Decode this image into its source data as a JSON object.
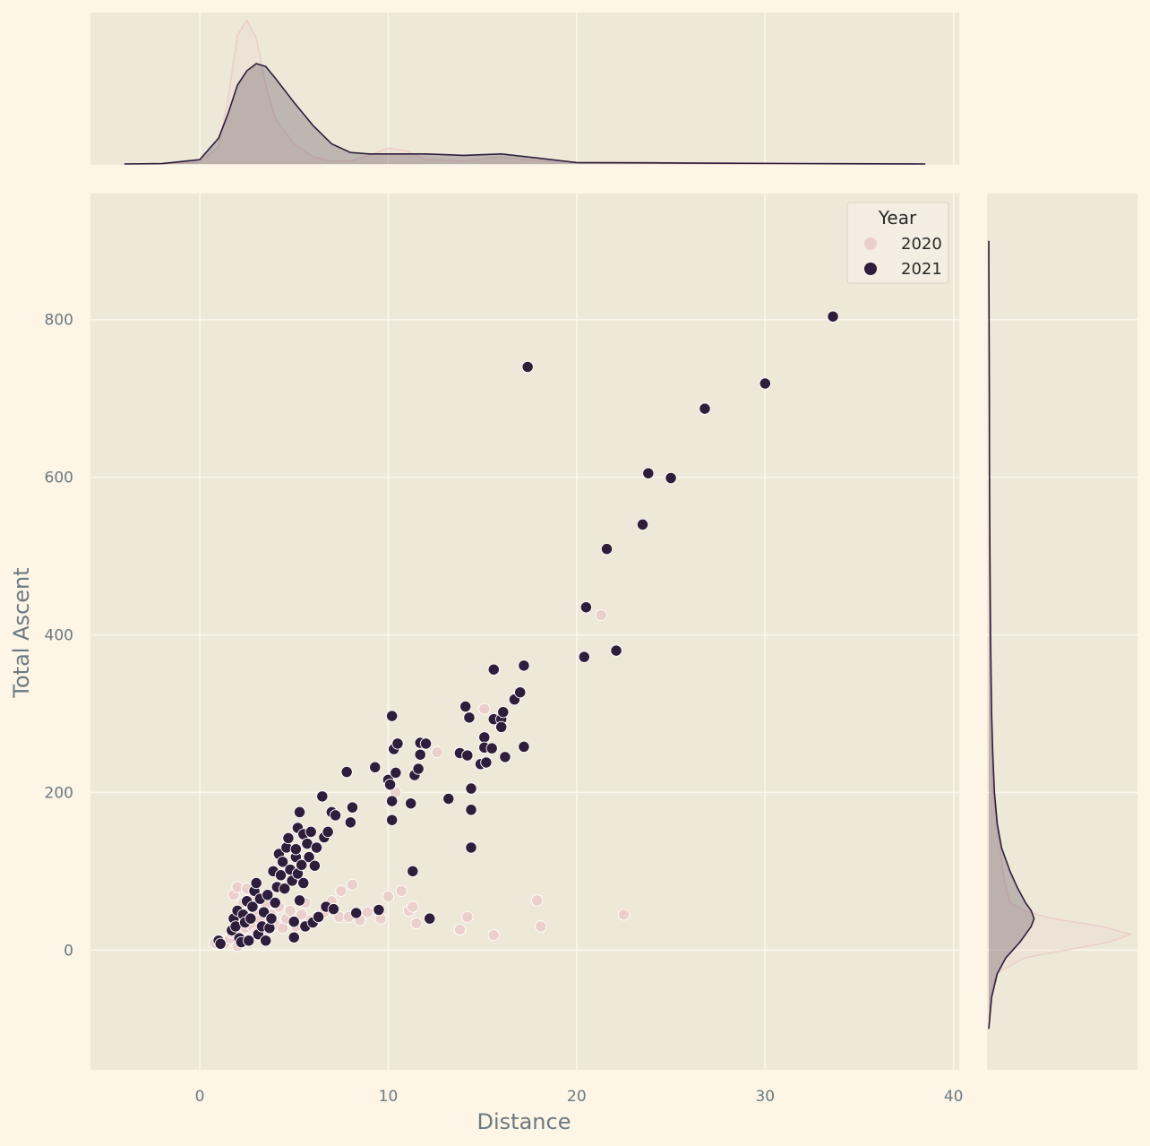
{
  "chart_data": {
    "type": "scatter",
    "kind": "jointplot with marginal KDE",
    "xlabel": "Distance",
    "ylabel": "Total Ascent",
    "xlim": [
      -5.8,
      40.3
    ],
    "ylim": [
      -152,
      960
    ],
    "xticks": [
      0,
      10,
      20,
      30,
      40
    ],
    "yticks": [
      0,
      200,
      400,
      600,
      800
    ],
    "grid": true,
    "legend": {
      "title": "Year",
      "position": "top-right"
    },
    "colors": {
      "plot_bg": "#ede8d8",
      "page_bg": "#fdf5e6",
      "grid": "#fbf7ee",
      "tick_text": "#6c7a80"
    },
    "series": [
      {
        "name": "2020",
        "color": "#ebcfcb",
        "points": [
          [
            0.8,
            9
          ],
          [
            1.1,
            12
          ],
          [
            1.3,
            8
          ],
          [
            1.6,
            15
          ],
          [
            1.7,
            22
          ],
          [
            1.8,
            70
          ],
          [
            1.9,
            25
          ],
          [
            2.0,
            80
          ],
          [
            2.0,
            5
          ],
          [
            2.1,
            18
          ],
          [
            2.2,
            35
          ],
          [
            2.3,
            60
          ],
          [
            2.4,
            28
          ],
          [
            2.5,
            44
          ],
          [
            2.5,
            78
          ],
          [
            2.6,
            12
          ],
          [
            2.7,
            55
          ],
          [
            2.8,
            30
          ],
          [
            2.9,
            67
          ],
          [
            3.0,
            22
          ],
          [
            3.1,
            48
          ],
          [
            3.2,
            38
          ],
          [
            3.3,
            18
          ],
          [
            3.5,
            58
          ],
          [
            3.6,
            26
          ],
          [
            3.8,
            45
          ],
          [
            4.0,
            32
          ],
          [
            4.2,
            55
          ],
          [
            4.4,
            28
          ],
          [
            4.6,
            40
          ],
          [
            4.8,
            50
          ],
          [
            5.1,
            30
          ],
          [
            5.4,
            45
          ],
          [
            5.6,
            60
          ],
          [
            5.9,
            38
          ],
          [
            6.2,
            42
          ],
          [
            6.6,
            48
          ],
          [
            7.0,
            62
          ],
          [
            7.4,
            42
          ],
          [
            7.5,
            75
          ],
          [
            7.9,
            42
          ],
          [
            8.1,
            83
          ],
          [
            8.5,
            38
          ],
          [
            8.9,
            48
          ],
          [
            9.6,
            40
          ],
          [
            10.0,
            68
          ],
          [
            10.4,
            200
          ],
          [
            10.7,
            75
          ],
          [
            11.1,
            50
          ],
          [
            11.3,
            55
          ],
          [
            11.5,
            34
          ],
          [
            12.6,
            251
          ],
          [
            13.8,
            26
          ],
          [
            14.2,
            42
          ],
          [
            15.1,
            306
          ],
          [
            15.6,
            19
          ],
          [
            17.9,
            63
          ],
          [
            18.1,
            30
          ],
          [
            21.3,
            425
          ],
          [
            22.5,
            45
          ]
        ]
      },
      {
        "name": "2021",
        "color": "#2e1e3b",
        "points": [
          [
            1.0,
            12
          ],
          [
            1.1,
            8
          ],
          [
            1.7,
            25
          ],
          [
            1.8,
            40
          ],
          [
            1.9,
            30
          ],
          [
            2.0,
            50
          ],
          [
            2.1,
            15
          ],
          [
            2.2,
            10
          ],
          [
            2.3,
            45
          ],
          [
            2.4,
            35
          ],
          [
            2.5,
            62
          ],
          [
            2.6,
            12
          ],
          [
            2.7,
            40
          ],
          [
            2.8,
            55
          ],
          [
            2.9,
            75
          ],
          [
            3.0,
            85
          ],
          [
            3.1,
            20
          ],
          [
            3.2,
            65
          ],
          [
            3.3,
            30
          ],
          [
            3.4,
            48
          ],
          [
            3.5,
            12
          ],
          [
            3.6,
            70
          ],
          [
            3.7,
            28
          ],
          [
            3.8,
            40
          ],
          [
            3.9,
            100
          ],
          [
            4.0,
            60
          ],
          [
            4.1,
            80
          ],
          [
            4.2,
            122
          ],
          [
            4.3,
            95
          ],
          [
            4.4,
            112
          ],
          [
            4.5,
            78
          ],
          [
            4.6,
            130
          ],
          [
            4.7,
            142
          ],
          [
            4.8,
            102
          ],
          [
            4.9,
            88
          ],
          [
            5.0,
            16
          ],
          [
            5.0,
            36
          ],
          [
            5.1,
            118
          ],
          [
            5.1,
            128
          ],
          [
            5.2,
            155
          ],
          [
            5.2,
            97
          ],
          [
            5.3,
            63
          ],
          [
            5.3,
            175
          ],
          [
            5.4,
            108
          ],
          [
            5.5,
            147
          ],
          [
            5.5,
            85
          ],
          [
            5.6,
            30
          ],
          [
            5.7,
            135
          ],
          [
            5.8,
            118
          ],
          [
            5.9,
            150
          ],
          [
            6.0,
            35
          ],
          [
            6.1,
            107
          ],
          [
            6.2,
            130
          ],
          [
            6.3,
            42
          ],
          [
            6.5,
            195
          ],
          [
            6.6,
            143
          ],
          [
            6.7,
            55
          ],
          [
            6.8,
            150
          ],
          [
            7.0,
            175
          ],
          [
            7.1,
            52
          ],
          [
            7.2,
            171
          ],
          [
            7.8,
            226
          ],
          [
            8.0,
            162
          ],
          [
            8.1,
            181
          ],
          [
            8.3,
            47
          ],
          [
            9.3,
            232
          ],
          [
            9.5,
            51
          ],
          [
            10.0,
            216
          ],
          [
            10.1,
            210
          ],
          [
            10.2,
            189
          ],
          [
            10.2,
            165
          ],
          [
            10.3,
            255
          ],
          [
            10.4,
            225
          ],
          [
            10.5,
            262
          ],
          [
            10.2,
            297
          ],
          [
            11.2,
            186
          ],
          [
            11.3,
            100
          ],
          [
            11.4,
            222
          ],
          [
            11.6,
            230
          ],
          [
            11.7,
            248
          ],
          [
            11.7,
            263
          ],
          [
            12.0,
            262
          ],
          [
            12.2,
            40
          ],
          [
            13.2,
            192
          ],
          [
            13.8,
            250
          ],
          [
            14.1,
            309
          ],
          [
            14.2,
            247
          ],
          [
            14.3,
            295
          ],
          [
            14.4,
            178
          ],
          [
            14.4,
            205
          ],
          [
            14.4,
            130
          ],
          [
            14.9,
            236
          ],
          [
            15.1,
            270
          ],
          [
            15.1,
            257
          ],
          [
            15.2,
            238
          ],
          [
            15.5,
            256
          ],
          [
            15.6,
            293
          ],
          [
            15.6,
            356
          ],
          [
            16.0,
            293
          ],
          [
            16.0,
            283
          ],
          [
            16.1,
            302
          ],
          [
            16.2,
            245
          ],
          [
            16.7,
            318
          ],
          [
            17.0,
            327
          ],
          [
            17.2,
            361
          ],
          [
            17.2,
            258
          ],
          [
            17.4,
            740
          ],
          [
            20.4,
            372
          ],
          [
            20.5,
            435
          ],
          [
            21.6,
            509
          ],
          [
            22.1,
            380
          ],
          [
            23.5,
            540
          ],
          [
            23.8,
            605
          ],
          [
            25.0,
            599
          ],
          [
            26.8,
            687
          ],
          [
            30.0,
            719
          ],
          [
            33.6,
            804
          ]
        ]
      }
    ],
    "kde_marginal_x": {
      "x": [
        -4.0,
        -2.0,
        0.0,
        1.0,
        1.5,
        2.0,
        2.5,
        3.0,
        3.5,
        4.0,
        5.0,
        6.0,
        7.0,
        8.0,
        9.0,
        10.0,
        11.0,
        12.0,
        14.0,
        16.0,
        18.0,
        20.0,
        24.0,
        28.0,
        34.0,
        38.5
      ],
      "series": [
        {
          "name": "2020",
          "values": [
            0,
            0.002,
            0.01,
            0.12,
            0.45,
            0.9,
            1.0,
            0.88,
            0.55,
            0.32,
            0.14,
            0.05,
            0.02,
            0.02,
            0.06,
            0.11,
            0.09,
            0.03,
            0.02,
            0.05,
            0.02,
            0.01,
            0.005,
            0.002,
            0.001,
            0
          ]
        },
        {
          "name": "2021",
          "values": [
            0,
            0.003,
            0.03,
            0.18,
            0.35,
            0.55,
            0.65,
            0.7,
            0.68,
            0.6,
            0.43,
            0.27,
            0.14,
            0.08,
            0.07,
            0.07,
            0.07,
            0.07,
            0.06,
            0.07,
            0.04,
            0.01,
            0.008,
            0.005,
            0.002,
            0
          ]
        }
      ]
    },
    "kde_marginal_y": {
      "y": [
        -100,
        -60,
        -30,
        -10,
        0,
        10,
        20,
        30,
        40,
        50,
        60,
        80,
        100,
        130,
        160,
        200,
        250,
        300,
        400,
        500,
        600,
        700,
        800,
        900
      ],
      "series": [
        {
          "name": "2020",
          "values": [
            0,
            0.01,
            0.05,
            0.25,
            0.55,
            0.85,
            1.0,
            0.8,
            0.45,
            0.25,
            0.15,
            0.12,
            0.1,
            0.08,
            0.05,
            0.03,
            0.02,
            0.02,
            0.015,
            0.01,
            0.005,
            0.003,
            0.002,
            0
          ]
        },
        {
          "name": "2021",
          "values": [
            0,
            0.02,
            0.06,
            0.12,
            0.17,
            0.22,
            0.26,
            0.3,
            0.32,
            0.3,
            0.26,
            0.2,
            0.15,
            0.09,
            0.06,
            0.04,
            0.028,
            0.02,
            0.012,
            0.008,
            0.005,
            0.004,
            0.002,
            0
          ]
        }
      ]
    }
  }
}
